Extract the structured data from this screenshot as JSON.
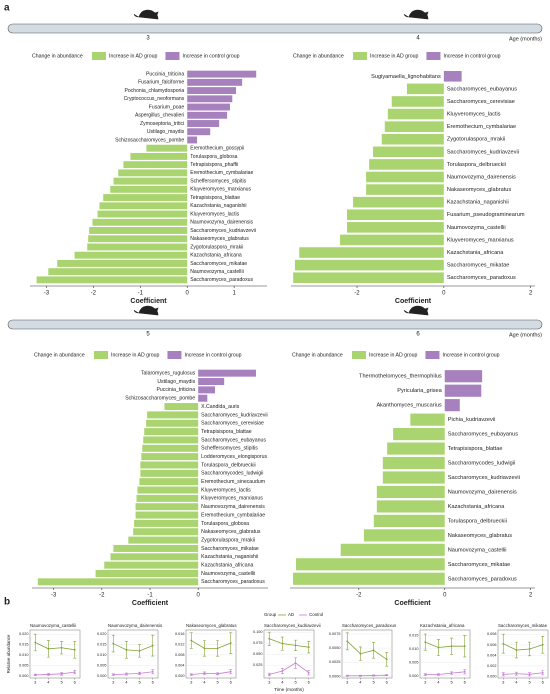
{
  "panel_labels": [
    "a",
    "b"
  ],
  "age_axis_label": "Age (months)",
  "chart_data": [
    {
      "type": "hbar",
      "title": "3",
      "xlabel": "Coefficient",
      "legend_title": "Change in abundance",
      "legend": [
        {
          "name": "Increase in AD group",
          "color": "#a9d46f"
        },
        {
          "name": "Increase in control group",
          "color": "#a681bd"
        }
      ],
      "xlim": [
        -3.35,
        1.7
      ],
      "xticks": [
        -3,
        -2,
        -1,
        0,
        1
      ],
      "categories": [
        "Puccinia_triticina",
        "Fusarium_falciforme",
        "Pochonia_chlamydosporia",
        "Cryptococcus_neoformans",
        "Fusarium_poae",
        "Aspergillus_chevalieri",
        "Zymoseptoria_tritici",
        "Ustilago_maydis",
        "Schizosaccharomyces_pombe",
        "Eremothecium_gossypii",
        "Torulaspora_globosa",
        "Tetrapisispora_phaffii",
        "Eremothecium_cymbalariae",
        "Scheffersomyces_stipitis",
        "Kluyveromyces_marxianus",
        "Tetrapisispora_blattae",
        "Kazachstania_naganishii",
        "Kluyveromyces_lactis",
        "Naumovozyma_dairenensis",
        "Saccharomyces_kudriavzevii",
        "Nakaseomyces_glabratus",
        "Zygotorulaspora_mrakii",
        "Kazachstania_africana",
        "Saccharomyces_mikatae",
        "Naumovozyma_castellii",
        "Saccharomyces_paradoxus"
      ],
      "values": [
        1.47,
        1.17,
        1.04,
        0.96,
        0.91,
        0.85,
        0.68,
        0.49,
        0.21,
        -0.87,
        -1.21,
        -1.36,
        -1.47,
        -1.57,
        -1.64,
        -1.79,
        -1.87,
        -1.91,
        -2.02,
        -2.09,
        -2.11,
        -2.13,
        -2.4,
        -2.77,
        -2.96,
        -3.21
      ]
    },
    {
      "type": "hbar",
      "title": "4",
      "xlabel": "Coefficient",
      "legend_title": "Change in abundance",
      "legend": [
        {
          "name": "Increase in AD group",
          "color": "#a9d46f"
        },
        {
          "name": "Increase in control group",
          "color": "#a681bd"
        }
      ],
      "xlim": [
        -3.52,
        2.1
      ],
      "xticks": [
        -2,
        0,
        2
      ],
      "categories": [
        "Sugiyamaella_lignohabitans",
        "Saccharomyces_eubayanus",
        "Saccharomyces_cerevisiae",
        "Kluyveromyces_lactis",
        "Eremothecium_cymbalariae",
        "Zygotorulaspora_mrakii",
        "Saccharomyces_kudriavzevii",
        "Torulaspora_delbrueckii",
        "Naumovozyma_dairenensis",
        "Nakaseomyces_glabratus",
        "Kazachstania_naganishii",
        "Fusarium_pseudograminearum",
        "Naumovozyma_castellii",
        "Kluyveromyces_marxianus",
        "Kazachstania_africana",
        "Saccharomyces_mikatae",
        "Saccharomyces_paradoxus"
      ],
      "values": [
        0.41,
        -0.85,
        -1.2,
        -1.29,
        -1.36,
        -1.43,
        -1.63,
        -1.72,
        -1.79,
        -1.79,
        -2.09,
        -2.23,
        -2.23,
        -2.39,
        -3.33,
        -3.43,
        -3.47
      ]
    },
    {
      "type": "hbar",
      "title": "5",
      "xlabel": "Coefficient",
      "legend_title": "Change in abundance",
      "legend": [
        {
          "name": "Increase in AD group",
          "color": "#a9d46f"
        },
        {
          "name": "Increase in control group",
          "color": "#a681bd"
        }
      ],
      "xlim": [
        -3.45,
        1.45
      ],
      "xticks": [
        -3,
        -2,
        -1,
        0
      ],
      "categories": [
        "Talaromyces_rugulosus",
        "Ustilago_maydis",
        "Puccinia_triticina",
        "Schizosaccharomyces_pombe",
        "X.Candida_auris",
        "Saccharomyces_kudriavzevii",
        "Saccharomyces_cerevisiae",
        "Tetrapisispora_blattae",
        "Saccharomyces_eubayanus",
        "Scheffersomyces_stipitis",
        "Lodderomyces_elongisporus",
        "Torulaspora_delbrueckii",
        "Saccharomycodes_ludwigii",
        "Eremothecium_sinecaudum",
        "Kluyveromyces_lactis",
        "Kluyveromyces_marxianus",
        "Naumovozyma_dairenensis",
        "Eremothecium_cymbalariae",
        "Torulaspora_globosa",
        "Nakaseomyces_glabratus",
        "Zygotorulaspora_mrakii",
        "Saccharomyces_mikatae",
        "Kazachstania_naganishii",
        "Kazachstania_africana",
        "Naumovozyma_castellii",
        "Saccharomyces_paradoxus"
      ],
      "values": [
        1.2,
        0.54,
        0.35,
        0.19,
        -0.7,
        -1.06,
        -1.08,
        -1.12,
        -1.14,
        -1.16,
        -1.18,
        -1.2,
        -1.2,
        -1.22,
        -1.26,
        -1.28,
        -1.3,
        -1.3,
        -1.33,
        -1.35,
        -1.45,
        -1.76,
        -1.82,
        -1.95,
        -2.13,
        -3.33
      ]
    },
    {
      "type": "hbar",
      "title": "6",
      "xlabel": "Coefficient",
      "legend_title": "Change in abundance",
      "legend": [
        {
          "name": "Increase in AD group",
          "color": "#a9d46f"
        },
        {
          "name": "Increase in control group",
          "color": "#a681bd"
        }
      ],
      "xlim": [
        -3.6,
        2.1
      ],
      "xticks": [
        -2,
        0,
        2
      ],
      "categories": [
        "Thermothelomyces_thermophilus",
        "Pyricularia_grisea",
        "Akanthomyces_muscarius",
        "Pichia_kudriavzevii",
        "Saccharomyces_eubayanus",
        "Tetrapisispora_blattae",
        "Saccharomycodes_ludwigii",
        "Saccharomyces_kudriavzevii",
        "Naumovozyma_dairenensis",
        "Kazachstania_africana",
        "Torulaspora_delbrueckii",
        "Nakaseomyces_glabratus",
        "Naumovozyma_castellii",
        "Saccharomyces_mikatae",
        "Saccharomyces_paradoxus"
      ],
      "values": [
        0.87,
        0.85,
        0.35,
        -0.8,
        -1.2,
        -1.34,
        -1.44,
        -1.44,
        -1.58,
        -1.58,
        -1.65,
        -1.88,
        -2.42,
        -3.46,
        -3.53
      ]
    },
    {
      "type": "facet_line",
      "legend_title": "Group",
      "xlabel": "Time (months)",
      "ylabel": "Relative abundance",
      "x": [
        3,
        4,
        5,
        6
      ],
      "xlim": [
        2.6,
        6.4
      ],
      "xticks": [
        3,
        4,
        5,
        6
      ],
      "series": [
        {
          "name": "AD",
          "color": "#7fa432"
        },
        {
          "name": "Control",
          "color": "#c77cd4"
        }
      ],
      "facets": [
        {
          "title": "Naumovozyma_castellii",
          "ylim": [
            -0.001,
            0.022
          ],
          "yticks": [
            {
              "value": 0,
              "label": "0.000"
            },
            0.005,
            {
              "value": 0.01,
              "label": "0.010"
            },
            0.015,
            {
              "value": 0.02,
              "label": "0.020"
            }
          ],
          "values": [
            [
              0.016,
              0.013,
              0.0135,
              0.0125
            ],
            [
              0.0005,
              0.0007,
              0.001,
              0.0018
            ]
          ],
          "errors": [
            [
              0.004,
              0.004,
              0.003,
              0.004
            ],
            [
              0.0004,
              0.0005,
              0.0006,
              0.0008
            ]
          ]
        },
        {
          "title": "Naumovozyma_dairenensis",
          "ylim": [
            -0.001,
            0.022
          ],
          "yticks": [
            {
              "value": 0,
              "label": "0.000"
            },
            0.005,
            {
              "value": 0.01,
              "label": "0.010"
            },
            0.015,
            {
              "value": 0.02,
              "label": "0.020"
            }
          ],
          "values": [
            [
              0.0155,
              0.0125,
              0.012,
              0.0145
            ],
            [
              0.0006,
              0.0009,
              0.0012,
              0.002
            ]
          ],
          "errors": [
            [
              0.004,
              0.004,
              0.003,
              0.005
            ],
            [
              0.0004,
              0.0005,
              0.0006,
              0.001
            ]
          ]
        },
        {
          "title": "Nakaseomyces_glabratus",
          "ylim": [
            -0.0008,
            0.0175
          ],
          "yticks": [
            {
              "value": 0,
              "label": "0.000"
            },
            0.004,
            0.008,
            0.012,
            0.016
          ],
          "values": [
            [
              0.0135,
              0.0105,
              0.0105,
              0.0125
            ],
            [
              0.0005,
              0.001,
              0.0008,
              0.0016
            ]
          ],
          "errors": [
            [
              0.003,
              0.003,
              0.003,
              0.004
            ],
            [
              0.0003,
              0.0005,
              0.0004,
              0.0008
            ]
          ]
        },
        {
          "title": "Saccharomyces_kudriavzevii",
          "ylim": [
            -0.004,
            0.105
          ],
          "yticks": [
            0.025,
            {
              "value": 0.05,
              "label": "0.050"
            },
            0.075,
            {
              "value": 0.1,
              "label": "0.100"
            }
          ],
          "values": [
            [
              0.085,
              0.074,
              0.07,
              0.066
            ],
            [
              0.004,
              0.012,
              0.03,
              0.008
            ]
          ],
          "errors": [
            [
              0.015,
              0.015,
              0.012,
              0.013
            ],
            [
              0.003,
              0.006,
              0.012,
              0.005
            ]
          ]
        },
        {
          "title": "Saccharomyces_paradoxus",
          "ylim": [
            -0.0003,
            0.0082
          ],
          "yticks": [
            {
              "value": 0,
              "label": "0.0000"
            },
            0.0025,
            {
              "value": 0.005,
              "label": "0.0050"
            },
            0.0075
          ],
          "values": [
            [
              0.0062,
              0.004,
              0.0046,
              0.003
            ],
            [
              0.0001,
              0.0001,
              0.00015,
              0.0002
            ]
          ],
          "errors": [
            [
              0.0015,
              0.0012,
              0.0014,
              0.0012
            ],
            [
              0.0001,
              0.0001,
              0.0001,
              0.0001
            ]
          ]
        },
        {
          "title": "Kazachstania_africana",
          "ylim": [
            -0.0008,
            0.017
          ],
          "yticks": [
            {
              "value": 0,
              "label": "0.000"
            },
            0.005,
            {
              "value": 0.01,
              "label": "0.010"
            },
            0.015
          ],
          "values": [
            [
              0.0125,
              0.0105,
              0.011,
              0.011
            ],
            [
              0.0005,
              0.0005,
              0.001,
              0.0015
            ]
          ],
          "errors": [
            [
              0.003,
              0.003,
              0.003,
              0.004
            ],
            [
              0.0003,
              0.0003,
              0.0005,
              0.0008
            ]
          ]
        },
        {
          "title": "Saccharomyces_mikatae",
          "ylim": [
            -0.0003,
            0.0088
          ],
          "yticks": [
            {
              "value": 0,
              "label": "0.000"
            },
            0.002,
            0.004,
            0.006,
            0.008
          ],
          "values": [
            [
              0.0062,
              0.005,
              0.0052,
              0.006
            ],
            [
              0.0004,
              0.0005,
              0.0004,
              0.0007
            ]
          ],
          "errors": [
            [
              0.0018,
              0.0015,
              0.0013,
              0.0016
            ],
            [
              0.0003,
              0.0003,
              0.0003,
              0.0004
            ]
          ]
        }
      ]
    }
  ]
}
